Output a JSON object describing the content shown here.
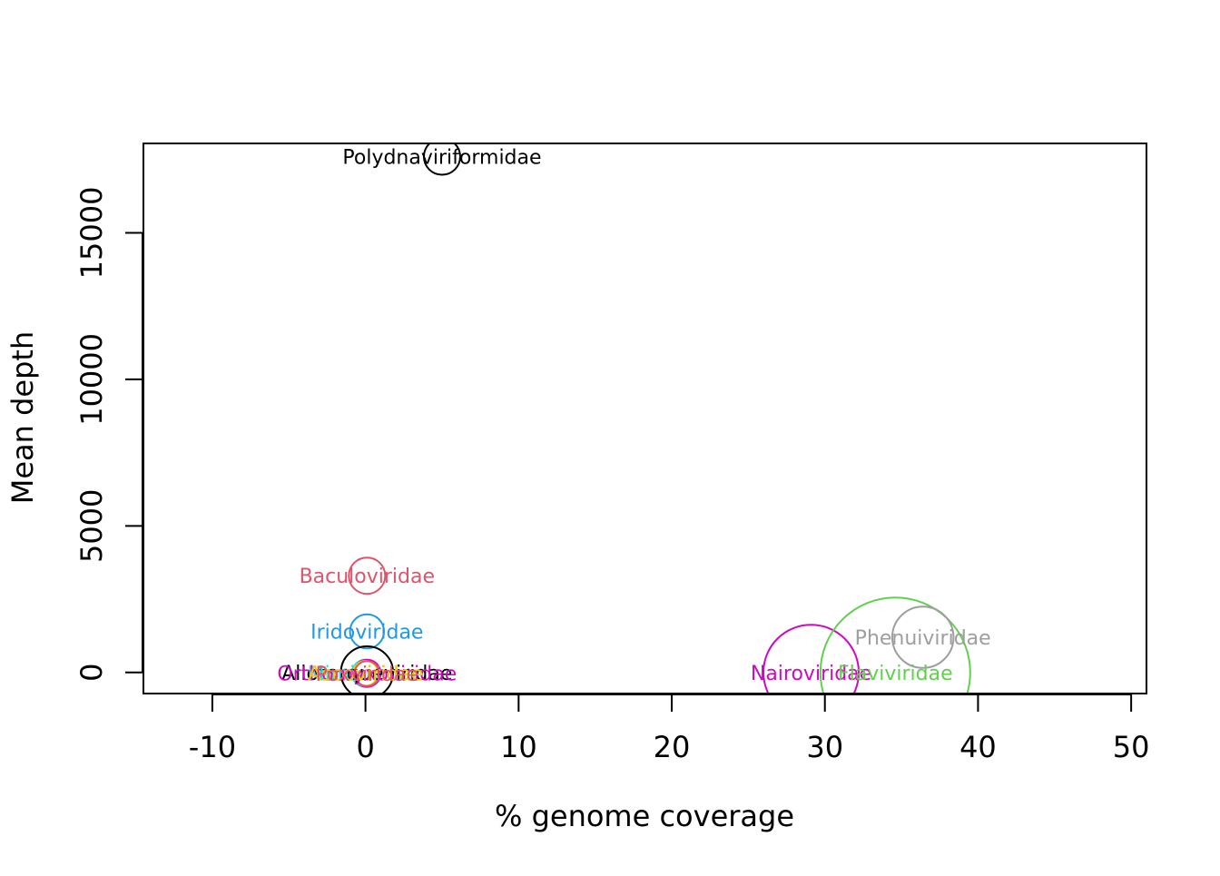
{
  "chart_data": {
    "type": "scatter",
    "title": "",
    "xlabel": "% genome coverage",
    "ylabel": "Mean depth",
    "xlim": [
      -14.5,
      51
    ],
    "ylim": [
      -720,
      18050
    ],
    "xticks": [
      -10,
      0,
      10,
      20,
      30,
      40,
      50
    ],
    "yticks": [
      0,
      5000,
      10000,
      15000
    ],
    "grid": false,
    "legend": "none",
    "marker": "circle (size proportional to value)",
    "points": [
      {
        "label": "Polydnaviriformidae",
        "x": 5.0,
        "y": 17600,
        "r_rel": 0.8,
        "color": "#000000"
      },
      {
        "label": "Baculoviridae",
        "x": 0.1,
        "y": 3300,
        "r_rel": 0.8,
        "color": "#DF536B"
      },
      {
        "label": "Iridoviridae",
        "x": 0.1,
        "y": 1400,
        "r_rel": 0.75,
        "color": "#2297E6"
      },
      {
        "label": "Allotorqueviridae",
        "x": 0.1,
        "y": 0,
        "r_rel": 1.15,
        "color": "#000000"
      },
      {
        "label": "Mimiviridae",
        "x": 0.0,
        "y": -30,
        "r_rel": 0.6,
        "color": "#28E2E5"
      },
      {
        "label": "Orthomyxoviridae",
        "x": 0.1,
        "y": -30,
        "r_rel": 0.6,
        "color": "#CD0BBC"
      },
      {
        "label": "Ascoviridae",
        "x": 0.0,
        "y": -30,
        "r_rel": 0.55,
        "color": "#F5C710"
      },
      {
        "label": "Poxviridae",
        "x": 0.1,
        "y": -40,
        "r_rel": 0.55,
        "color": "#DF536B"
      },
      {
        "label": "Nairoviridae",
        "x": 29.1,
        "y": 0,
        "r_rel": 2.1,
        "color": "#CD0BBC"
      },
      {
        "label": "Flaviviridae",
        "x": 34.6,
        "y": 0,
        "r_rel": 3.3,
        "color": "#61D04F"
      },
      {
        "label": "Phenuiviridae",
        "x": 36.4,
        "y": 1200,
        "r_rel": 1.35,
        "color": "#9E9E9E"
      }
    ]
  }
}
